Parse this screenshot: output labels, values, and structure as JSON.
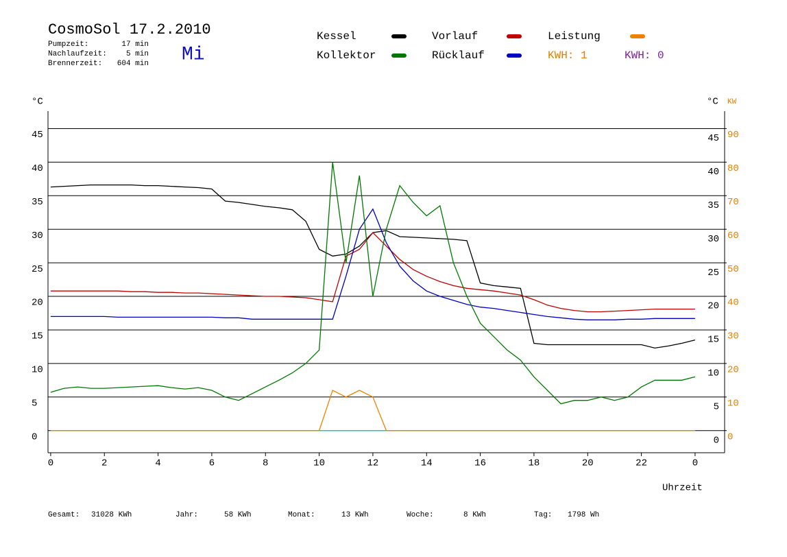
{
  "chart_data": {
    "type": "line",
    "title": "CosmoSol 17.2.2010",
    "weekday": "Mi",
    "info": [
      {
        "label": "Pumpzeit:",
        "value": "17 min"
      },
      {
        "label": "Nachlaufzeit:",
        "value": "5 min"
      },
      {
        "label": "Brennerzeit:",
        "value": "604 min"
      }
    ],
    "kwh_labels": [
      {
        "text": "KWH: 1",
        "color": "#e08000"
      },
      {
        "text": "KWH: 0",
        "color": "#8020a0"
      }
    ],
    "y_label": "°C",
    "y2_label_c": "°C",
    "y2_label": "KW",
    "x_label": "Uhrzeit",
    "totals": [
      {
        "label": "Gesamt:",
        "value": "31028 KWh"
      },
      {
        "label": "Jahr:",
        "value": "58 KWh"
      },
      {
        "label": "Monat:",
        "value": "13 KWh"
      },
      {
        "label": "Woche:",
        "value": "8 KWh"
      },
      {
        "label": "Tag:",
        "value": "1798 Wh"
      }
    ],
    "x": [
      0,
      0.5,
      1,
      1.5,
      2,
      2.5,
      3,
      3.5,
      4,
      4.5,
      5,
      5.5,
      6,
      6.5,
      7,
      7.5,
      8,
      8.5,
      9,
      9.5,
      10,
      10.5,
      11,
      11.5,
      12,
      12.5,
      13,
      13.5,
      14,
      14.5,
      15,
      15.5,
      16,
      16.5,
      17,
      17.5,
      18,
      18.5,
      19,
      19.5,
      20,
      20.5,
      21,
      21.5,
      22,
      22.5,
      23,
      23.5,
      24
    ],
    "series": [
      {
        "name": "Kessel",
        "color": "#000000",
        "values": [
          36.3,
          36.4,
          36.5,
          36.6,
          36.6,
          36.6,
          36.6,
          36.5,
          36.5,
          36.4,
          36.3,
          36.2,
          36.0,
          34.2,
          34.0,
          33.7,
          33.4,
          33.2,
          32.9,
          31.2,
          27.0,
          26.0,
          26.3,
          27.5,
          29.5,
          29.8,
          28.9,
          28.8,
          28.7,
          28.6,
          28.5,
          28.3,
          22.0,
          21.6,
          21.4,
          21.2,
          13.0,
          12.8,
          12.8,
          12.8,
          12.8,
          12.8,
          12.8,
          12.8,
          12.8,
          12.3,
          12.6,
          13.0,
          13.5
        ]
      },
      {
        "name": "Kollektor",
        "color": "#007800",
        "values": [
          5.7,
          6.3,
          6.5,
          6.3,
          6.3,
          6.4,
          6.5,
          6.6,
          6.7,
          6.4,
          6.2,
          6.4,
          6.0,
          5.0,
          4.5,
          5.5,
          6.5,
          7.5,
          8.6,
          10.0,
          12.0,
          40,
          25,
          38,
          20,
          30,
          36.5,
          34,
          32,
          33.5,
          25,
          20,
          16,
          14,
          12,
          10.5,
          8,
          6,
          4,
          4.5,
          4.5,
          5,
          4.5,
          5,
          6.5,
          7.5,
          7.5,
          7.5,
          8
        ]
      },
      {
        "name": "Vorlauf",
        "color": "#c00000",
        "values": [
          20.8,
          20.8,
          20.8,
          20.8,
          20.8,
          20.8,
          20.7,
          20.7,
          20.6,
          20.6,
          20.5,
          20.5,
          20.4,
          20.3,
          20.2,
          20.1,
          20.0,
          20.0,
          19.9,
          19.8,
          19.5,
          19.2,
          26,
          27,
          29.5,
          27.5,
          25.5,
          24,
          23,
          22.2,
          21.6,
          21.2,
          21.0,
          20.8,
          20.5,
          20.2,
          19.5,
          18.7,
          18.2,
          17.9,
          17.7,
          17.7,
          17.8,
          17.9,
          18,
          18.1,
          18.1,
          18.1,
          18.1
        ]
      },
      {
        "name": "Rücklauf",
        "color": "#0000c0",
        "values": [
          17.0,
          17.0,
          17.0,
          17.0,
          17.0,
          16.9,
          16.9,
          16.9,
          16.9,
          16.9,
          16.9,
          16.9,
          16.9,
          16.8,
          16.8,
          16.6,
          16.6,
          16.6,
          16.6,
          16.6,
          16.6,
          16.6,
          23,
          30,
          33,
          28,
          24.5,
          22.3,
          20.8,
          20,
          19.4,
          18.8,
          18.4,
          18.2,
          17.9,
          17.6,
          17.3,
          17.0,
          16.8,
          16.6,
          16.5,
          16.5,
          16.5,
          16.6,
          16.6,
          16.7,
          16.7,
          16.7,
          16.7
        ]
      },
      {
        "name": "Leistung",
        "color": "#f08000",
        "axis": "y2",
        "values": [
          0,
          0,
          0,
          0,
          0,
          0,
          0,
          0,
          0,
          0,
          0,
          0,
          0,
          0,
          0,
          0,
          0,
          0,
          0,
          0,
          0,
          12,
          10,
          12,
          10,
          0,
          0,
          0,
          0,
          0,
          0,
          0,
          0,
          0,
          0,
          0,
          0,
          0,
          0,
          0,
          0,
          0,
          0,
          0,
          0,
          0,
          0,
          0,
          0
        ]
      },
      {
        "color": "#00d0d0",
        "values": [
          0,
          0,
          0,
          0,
          0,
          0,
          0,
          0,
          0,
          0,
          0,
          0,
          0,
          0,
          0,
          0,
          0,
          0,
          0,
          0,
          0,
          0,
          0,
          0,
          0,
          0,
          0,
          0,
          0,
          0,
          0,
          0,
          0,
          0,
          0,
          0,
          0,
          0,
          0,
          0,
          0,
          0,
          0,
          0,
          0,
          0,
          0,
          0,
          0
        ]
      }
    ],
    "xlim": [
      -0.1,
      25.1
    ],
    "xticks": [
      0,
      2,
      4,
      6,
      8,
      10,
      12,
      14,
      16,
      18,
      20,
      22,
      {
        "value": 24,
        "label": "0"
      }
    ],
    "ylim": [
      -3.3,
      47.6
    ],
    "yticks": [
      0,
      5,
      10,
      15,
      20,
      25,
      30,
      35,
      40,
      45
    ],
    "y2lim": [
      -6.6,
      95.2
    ],
    "y2ticks": [
      0,
      10,
      20,
      30,
      40,
      50,
      60,
      70,
      80,
      90
    ],
    "y2color": "#e08000",
    "grid": true
  }
}
